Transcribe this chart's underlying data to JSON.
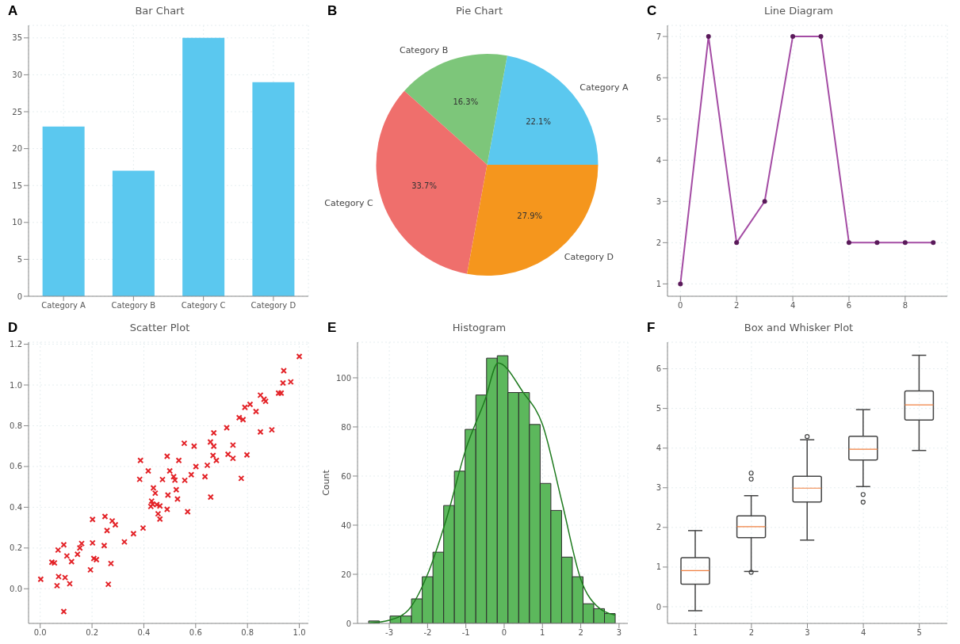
{
  "chart_data": [
    {
      "type": "bar",
      "title": "Bar Chart",
      "annotations": [
        "A"
      ],
      "categories": [
        "Category A",
        "Category B",
        "Category C",
        "Category D"
      ],
      "values": [
        23,
        17,
        35,
        29
      ],
      "color": "#5bc8ef",
      "ylim": [
        0,
        36.7
      ],
      "yticks": [
        0,
        5,
        10,
        15,
        20,
        25,
        30,
        35
      ],
      "grid": true
    },
    {
      "type": "pie",
      "title": "Pie Chart",
      "annotations": [
        "B"
      ],
      "categories": [
        "Category A",
        "Category B",
        "Category C",
        "Category D"
      ],
      "values": [
        22.1,
        16.3,
        33.7,
        27.9
      ],
      "value_labels": [
        "22.1%",
        "16.3%",
        "33.7%",
        "27.9%"
      ],
      "colors": [
        "#5bc8ef",
        "#7dc67a",
        "#ef6f6c",
        "#f5961d"
      ]
    },
    {
      "type": "line",
      "title": "Line Diagram",
      "annotations": [
        "C"
      ],
      "x": [
        0,
        1,
        2,
        3,
        4,
        5,
        6,
        7,
        8,
        9
      ],
      "values": [
        1,
        7,
        2,
        3,
        7,
        7,
        2,
        2,
        2,
        2
      ],
      "color": "#a44ca4",
      "marker": "circle",
      "xlim": [
        -0.46,
        9.5
      ],
      "xticks": [
        0,
        2,
        4,
        6,
        8
      ],
      "ylim": [
        0.7,
        7.27
      ],
      "yticks": [
        1,
        2,
        3,
        4,
        5,
        6,
        7
      ],
      "grid": true
    },
    {
      "type": "scatter",
      "title": "Scatter Plot",
      "annotations": [
        "D"
      ],
      "color": "#e32227",
      "marker": "cross",
      "grid": true,
      "x": [
        1.0,
        0.94,
        0.937,
        0.967,
        0.92,
        0.93,
        0.85,
        0.864,
        0.87,
        0.81,
        0.79,
        0.833,
        0.768,
        0.783,
        0.72,
        0.85,
        0.894,
        0.67,
        0.657,
        0.67,
        0.744,
        0.556,
        0.594,
        0.725,
        0.744,
        0.798,
        0.667,
        0.68,
        0.49,
        0.535,
        0.387,
        0.601,
        0.645,
        0.5,
        0.417,
        0.583,
        0.515,
        0.52,
        0.472,
        0.558,
        0.636,
        0.384,
        0.776,
        0.437,
        0.525,
        0.444,
        0.493,
        0.53,
        0.658,
        0.43,
        0.434,
        0.45,
        0.462,
        0.427,
        0.49,
        0.569,
        0.455,
        0.462,
        0.397,
        0.36,
        0.325,
        0.25,
        0.202,
        0.278,
        0.29,
        0.258,
        0.16,
        0.202,
        0.153,
        0.247,
        0.091,
        0.069,
        0.144,
        0.103,
        0.207,
        0.217,
        0.121,
        0.045,
        0.055,
        0.273,
        0.194,
        0.071,
        0.096,
        0.114,
        0.263,
        0.065,
        0.002,
        0.091
      ],
      "values": [
        1.14,
        1.07,
        1.01,
        1.015,
        0.96,
        0.96,
        0.95,
        0.93,
        0.92,
        0.905,
        0.89,
        0.87,
        0.84,
        0.83,
        0.79,
        0.77,
        0.78,
        0.765,
        0.72,
        0.7,
        0.705,
        0.714,
        0.7,
        0.66,
        0.64,
        0.657,
        0.654,
        0.63,
        0.65,
        0.63,
        0.63,
        0.6,
        0.606,
        0.578,
        0.578,
        0.56,
        0.55,
        0.533,
        0.536,
        0.532,
        0.55,
        0.537,
        0.542,
        0.495,
        0.486,
        0.469,
        0.46,
        0.44,
        0.45,
        0.43,
        0.415,
        0.413,
        0.406,
        0.404,
        0.39,
        0.378,
        0.368,
        0.342,
        0.298,
        0.27,
        0.23,
        0.355,
        0.34,
        0.333,
        0.314,
        0.286,
        0.222,
        0.225,
        0.2,
        0.212,
        0.216,
        0.19,
        0.169,
        0.161,
        0.149,
        0.143,
        0.133,
        0.13,
        0.127,
        0.124,
        0.093,
        0.06,
        0.055,
        0.025,
        0.022,
        0.015,
        0.047,
        -0.112
      ],
      "xlim": [
        -0.045,
        1.035
      ],
      "xticks": [
        {
          "value": 0,
          "label": "0.0"
        },
        0.2,
        0.4,
        0.6,
        0.8,
        {
          "value": 1,
          "label": "1.0"
        }
      ],
      "ylim": [
        -0.17,
        1.21
      ],
      "yticks": [
        {
          "value": 0,
          "label": "0.0"
        },
        0.2,
        0.4,
        0.6,
        0.8,
        {
          "value": 1,
          "label": "1.0"
        },
        1.2
      ]
    },
    {
      "type": "histogram",
      "title": "Histogram",
      "annotations": [
        "E"
      ],
      "ylabel": "Count",
      "color": "#5cb85c",
      "grid": true,
      "bins": [
        -3.54,
        -3.26,
        -2.98,
        -2.7,
        -2.42,
        -2.14,
        -1.86,
        -1.58,
        -1.3,
        -1.02,
        -0.74,
        -0.46,
        -0.18,
        0.1,
        0.38,
        0.66,
        0.94,
        1.22,
        1.5,
        1.78,
        2.06,
        2.34,
        2.62,
        2.9
      ],
      "values": [
        1,
        0,
        3,
        3,
        10,
        19,
        29,
        48,
        62,
        79,
        93,
        108,
        109,
        94,
        94,
        81,
        57,
        46,
        27,
        19,
        8,
        6,
        4
      ],
      "series": [
        {
          "type": "line",
          "color": "#1e7a1e",
          "x": [
            -3.5,
            -3,
            -2.5,
            -2,
            -1.5,
            -1,
            -0.5,
            -0.16,
            0.5,
            1,
            1.5,
            2,
            2.5,
            2.9
          ],
          "values": [
            0.2,
            1.3,
            5.5,
            20,
            43,
            71,
            91,
            106,
            94,
            81,
            50,
            18,
            6,
            3.4
          ]
        }
      ],
      "xlim": [
        -3.83,
        3.23
      ],
      "xticks": [
        -3,
        -2,
        -1,
        0,
        1,
        2,
        3
      ],
      "ylim": [
        0,
        114.5
      ],
      "yticks": [
        0,
        20,
        40,
        60,
        80,
        100
      ]
    },
    {
      "type": "box",
      "title": "Box and Whisker Plot",
      "annotations": [
        "F"
      ],
      "color": "#444444",
      "grid": true,
      "categories": [
        "1",
        "2",
        "3",
        "4",
        "5"
      ],
      "boxes": [
        {
          "low": -0.1,
          "q1": 0.57,
          "median": 0.91,
          "q3": 1.24,
          "high": 1.92
        },
        {
          "low": 0.89,
          "q1": 1.74,
          "median": 2.02,
          "q3": 2.29,
          "high": 2.8,
          "outliers": [
            3.37,
            3.22,
            0.87
          ]
        },
        {
          "low": 1.68,
          "q1": 2.64,
          "median": 2.99,
          "q3": 3.29,
          "high": 4.21,
          "outliers": [
            4.29
          ]
        },
        {
          "low": 3.03,
          "q1": 3.7,
          "median": 3.97,
          "q3": 4.3,
          "high": 4.97,
          "outliers": [
            2.83,
            2.64
          ]
        },
        {
          "low": 3.94,
          "q1": 4.71,
          "median": 5.09,
          "q3": 5.44,
          "high": 6.34
        }
      ],
      "ylim": [
        -0.42,
        6.67
      ],
      "yticks": [
        0,
        1,
        2,
        3,
        4,
        5,
        6
      ]
    }
  ]
}
